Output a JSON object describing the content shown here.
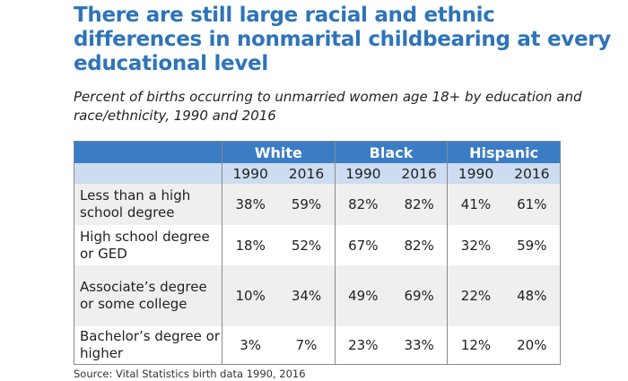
{
  "title": "There are still large racial and ethnic differences in nonmarital childbearing at every educational level",
  "subtitle": "Percent of births occurring to unmarried women age 18+ by education and race/ethnicity, 1990 and 2016",
  "source": "Source: Vital Statistics birth data 1990, 2016",
  "colors": {
    "header": "#3b7dc4",
    "year_row": "#cddcf0",
    "title": "#2e74b9",
    "shaded_row": "#efefef"
  },
  "chart_data": {
    "type": "table",
    "groups": [
      "White",
      "Black",
      "Hispanic"
    ],
    "years": [
      "1990",
      "2016",
      "1990",
      "2016",
      "1990",
      "2016"
    ],
    "rows": [
      {
        "label": "Less than a high school degree",
        "values": [
          "38%",
          "59%",
          "82%",
          "82%",
          "41%",
          "61%"
        ]
      },
      {
        "label": "High school degree or GED",
        "values": [
          "18%",
          "52%",
          "67%",
          "82%",
          "32%",
          "59%"
        ]
      },
      {
        "label": "Associate’s degree or some college",
        "values": [
          "10%",
          "34%",
          "49%",
          "69%",
          "22%",
          "48%"
        ]
      },
      {
        "label": "Bachelor’s degree or higher",
        "values": [
          "3%",
          "7%",
          "23%",
          "33%",
          "12%",
          "20%"
        ]
      }
    ]
  }
}
